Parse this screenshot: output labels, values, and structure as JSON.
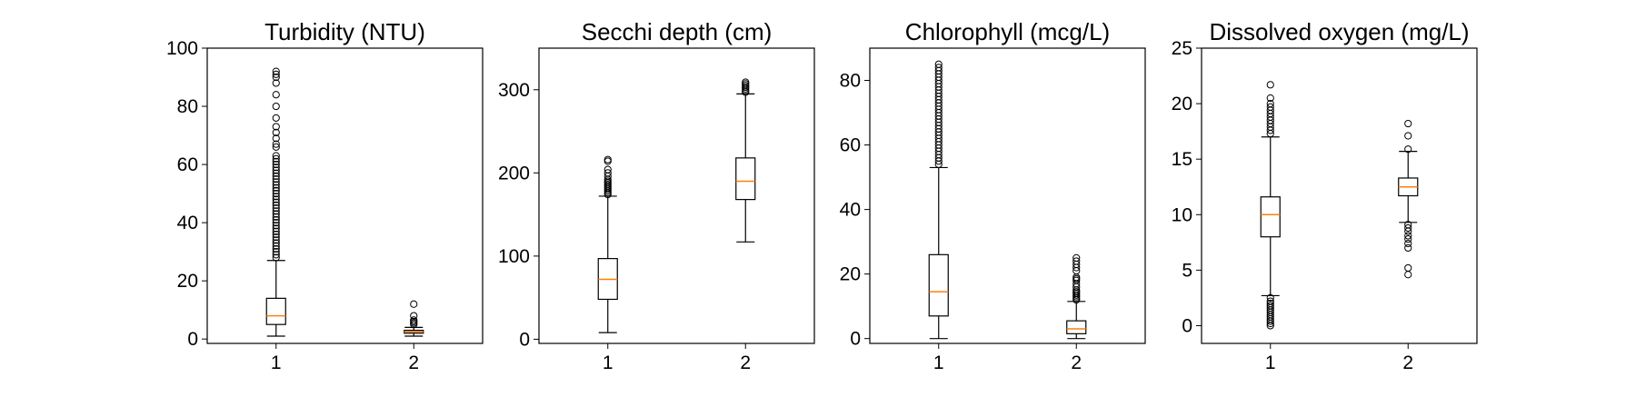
{
  "colors": {
    "box": "#000000",
    "median": "#ff7f0e",
    "background": "#ffffff"
  },
  "chart_data": [
    {
      "type": "box",
      "title": "Turbidity (NTU)",
      "xlabel": "",
      "ylabel": "",
      "categories": [
        "1",
        "2"
      ],
      "ylim": [
        -1.5,
        100
      ],
      "yticks": [
        0,
        20,
        40,
        60,
        80,
        100
      ],
      "boxes": [
        {
          "label": "1",
          "whisker_low": 1,
          "q1": 5,
          "median": 8,
          "q3": 14,
          "whisker_high": 27,
          "outliers": [
            28,
            29,
            30,
            31,
            32,
            33,
            34,
            35,
            36,
            37,
            38,
            39,
            40,
            41,
            42,
            43,
            44,
            45,
            46,
            47,
            48,
            49,
            50,
            51,
            52,
            53,
            54,
            55,
            56,
            57,
            58,
            59,
            60,
            61,
            62,
            63,
            66,
            67,
            69,
            71,
            73,
            76,
            80,
            84,
            88,
            90,
            91,
            92
          ]
        },
        {
          "label": "2",
          "whisker_low": 1,
          "q1": 2,
          "median": 2.5,
          "q3": 3,
          "whisker_high": 4,
          "outliers": [
            5,
            5.5,
            6,
            6.5,
            8,
            12
          ]
        }
      ]
    },
    {
      "type": "box",
      "title": "Secchi depth (cm)",
      "xlabel": "",
      "ylabel": "",
      "categories": [
        "1",
        "2"
      ],
      "ylim": [
        -5,
        350
      ],
      "yticks": [
        0,
        100,
        200,
        300
      ],
      "boxes": [
        {
          "label": "1",
          "whisker_low": 8,
          "q1": 48,
          "median": 72,
          "q3": 97,
          "whisker_high": 172,
          "outliers": [
            174,
            176,
            178,
            180,
            182,
            184,
            186,
            188,
            190,
            192,
            196,
            200,
            204,
            214,
            216
          ]
        },
        {
          "label": "2",
          "whisker_low": 117,
          "q1": 168,
          "median": 190,
          "q3": 218,
          "whisker_high": 295,
          "outliers": [
            297,
            299,
            301,
            303,
            305,
            307,
            309
          ]
        }
      ]
    },
    {
      "type": "box",
      "title": "Chlorophyll (mcg/L)",
      "xlabel": "",
      "ylabel": "",
      "categories": [
        "1",
        "2"
      ],
      "ylim": [
        -1.5,
        90
      ],
      "yticks": [
        0,
        20,
        40,
        60,
        80
      ],
      "boxes": [
        {
          "label": "1",
          "whisker_low": 0,
          "q1": 7,
          "median": 14.5,
          "q3": 26,
          "whisker_high": 53,
          "outliers": [
            54,
            55,
            56,
            57,
            58,
            59,
            60,
            61,
            62,
            63,
            64,
            65,
            66,
            67,
            68,
            69,
            70,
            71,
            72,
            73,
            74,
            75,
            76,
            77,
            78,
            79,
            80,
            81,
            82,
            83,
            84,
            85
          ]
        },
        {
          "label": "2",
          "whisker_low": 0,
          "q1": 1.5,
          "median": 3,
          "q3": 5.5,
          "whisker_high": 11.5,
          "outliers": [
            12,
            12.5,
            13,
            13.5,
            14,
            14.5,
            15,
            16,
            17,
            18,
            18.5,
            19,
            21,
            22,
            23,
            24,
            25
          ]
        }
      ]
    },
    {
      "type": "box",
      "title": "Dissolved oxygen (mg/L)",
      "xlabel": "",
      "ylabel": "",
      "categories": [
        "1",
        "2"
      ],
      "ylim": [
        -1.6,
        25
      ],
      "yticks": [
        0,
        5,
        10,
        15,
        20,
        25
      ],
      "boxes": [
        {
          "label": "1",
          "whisker_low": 2.7,
          "q1": 8,
          "median": 10,
          "q3": 11.6,
          "whisker_high": 17,
          "outliers": [
            0,
            0.2,
            0.4,
            0.6,
            0.8,
            1,
            1.2,
            1.4,
            1.6,
            1.8,
            2,
            2.2,
            2.5,
            17.3,
            17.6,
            17.9,
            18.2,
            18.5,
            18.8,
            19.1,
            19.4,
            19.7,
            20,
            20.5,
            21.7
          ]
        },
        {
          "label": "2",
          "whisker_low": 9.3,
          "q1": 11.7,
          "median": 12.5,
          "q3": 13.3,
          "whisker_high": 15.7,
          "outliers": [
            4.6,
            5.2,
            7,
            7.4,
            7.8,
            8.1,
            8.5,
            8.8,
            9.1,
            15.9,
            17.1,
            18.2
          ]
        }
      ]
    }
  ]
}
